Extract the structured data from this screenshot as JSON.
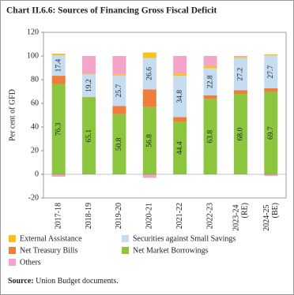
{
  "chart_data": {
    "type": "stacked_bar",
    "title": "Chart II.6.6: Sources of Financing Gross Fiscal Deficit",
    "y_label": "Per cent of GFD",
    "source_label": "Source:",
    "source": "Union Budget documents.",
    "categories": [
      "2017-18",
      "2018-19",
      "2019-20",
      "2020-21",
      "2021-22",
      "2022-23",
      "2023-24 (RE)",
      "2024-25 (BE)"
    ],
    "series": [
      {
        "name": "Net Market Borrowings",
        "color": "#8cc63f",
        "values": [
          76.3,
          65.1,
          50.8,
          56.8,
          44.4,
          63.8,
          68.0,
          69.7
        ],
        "value_labels": [
          "76.3",
          "65.1",
          "50.8",
          "56.8",
          "44.4",
          "63.8",
          "68.0",
          "69.7"
        ]
      },
      {
        "name": "Net Treasury Bills",
        "color": "#f07d3b",
        "values": [
          7.0,
          0.3,
          7.0,
          15.0,
          4.0,
          3.0,
          3.0,
          3.0
        ]
      },
      {
        "name": "Securities against Small Savings",
        "color": "#c6dcf0",
        "values": [
          17.4,
          19.2,
          25.7,
          26.6,
          34.8,
          22.8,
          27.2,
          27.7
        ],
        "value_labels": [
          "17.4",
          "19.2",
          "25.7",
          "26.6",
          "34.8",
          "22.8",
          "27.2",
          "27.7"
        ]
      },
      {
        "name": "External Assistance",
        "color": "#f8c21b",
        "values": [
          1.3,
          0.6,
          1.0,
          4.6,
          2.0,
          2.0,
          1.0,
          1.0
        ]
      },
      {
        "name": "Others",
        "color": "#f4a3c9",
        "values": [
          -2.0,
          14.8,
          15.5,
          -3.0,
          14.8,
          8.4,
          0.8,
          -1.4
        ]
      }
    ],
    "ylim": [
      -20,
      120
    ],
    "yticks": [
      -20,
      0,
      20,
      40,
      60,
      80,
      100,
      120
    ]
  }
}
